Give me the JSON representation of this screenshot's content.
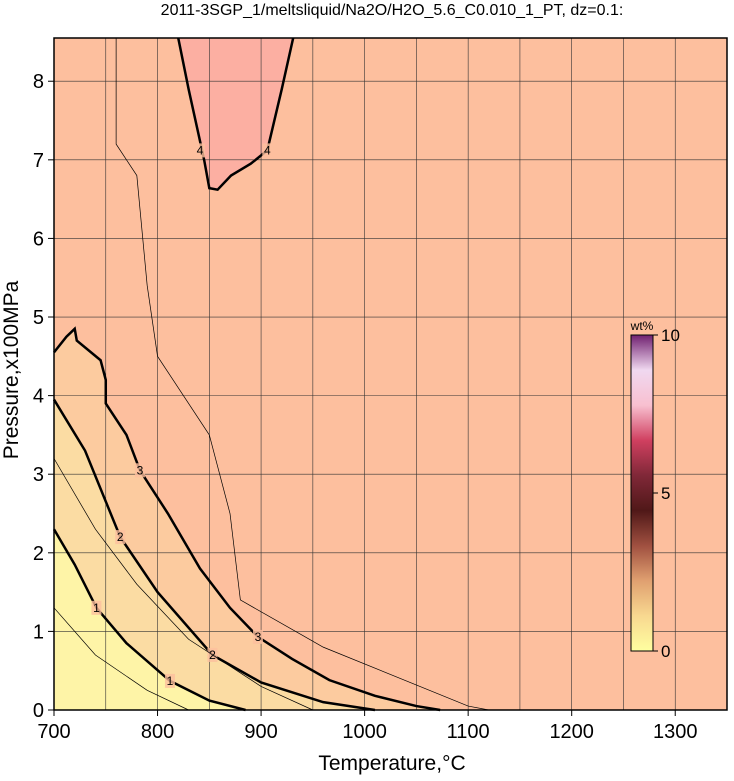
{
  "chart_data": {
    "type": "contour",
    "title": "2011-3SGP_1/meltsliquid/Na2O/H2O_5.6_C0.010_1_PT, dz=0.1:",
    "x_label": "Temperature,°C",
    "y_label": "Pressure,x100MPa",
    "xlim": [
      700,
      1350
    ],
    "ylim": [
      0,
      8.55
    ],
    "xticks": [
      700,
      800,
      900,
      1000,
      1100,
      1200,
      1300
    ],
    "yticks": [
      0,
      1,
      2,
      3,
      4,
      5,
      6,
      7,
      8
    ],
    "xgrid": [
      750,
      800,
      850,
      900,
      950,
      1000,
      1050,
      1100,
      1150,
      1200,
      1250,
      1300
    ],
    "ygrid": [
      1,
      2,
      3,
      4,
      5,
      6,
      7,
      8
    ],
    "background": "#fdbf9e",
    "contours": [
      {
        "level": 3,
        "fill": "#fccb9f",
        "width": 2.5,
        "x": [
          700,
          712,
          720,
          722,
          745,
          750,
          750,
          770,
          783,
          810,
          841,
          870,
          897,
          930,
          966,
          1010,
          1050,
          1073
        ],
        "y": [
          4.55,
          4.75,
          4.85,
          4.7,
          4.45,
          4.2,
          3.9,
          3.5,
          3.05,
          2.5,
          1.8,
          1.3,
          0.93,
          0.65,
          0.38,
          0.18,
          0.05,
          0
        ],
        "label_at": [
          [
            783,
            3.05
          ],
          [
            897,
            0.93
          ]
        ]
      },
      {
        "level": 2,
        "fill": "#fbdca3",
        "width": 2.5,
        "x": [
          700,
          730,
          764,
          800,
          853,
          900,
          960,
          1010
        ],
        "y": [
          3.95,
          3.3,
          2.2,
          1.5,
          0.7,
          0.35,
          0.1,
          0
        ],
        "label_at": [
          [
            764,
            2.2
          ],
          [
            853,
            0.7
          ]
        ]
      },
      {
        "level": 1,
        "fill": "#fef4a7",
        "width": 2.5,
        "x": [
          700,
          720,
          741,
          770,
          812,
          850,
          885
        ],
        "y": [
          2.3,
          1.85,
          1.3,
          0.85,
          0.37,
          0.12,
          0
        ],
        "label_at": [
          [
            741,
            1.3
          ],
          [
            812,
            0.37
          ]
        ]
      },
      {
        "level": 4,
        "fill": "#fcafa2",
        "width": 2.5,
        "x": [
          820,
          830,
          845,
          850,
          858,
          871,
          890,
          906,
          920,
          931
        ],
        "y": [
          8.55,
          7.9,
          7.0,
          6.64,
          6.62,
          6.8,
          6.95,
          7.12,
          7.9,
          8.55
        ],
        "label_at": [
          [
            841,
            7.12
          ],
          [
            906,
            7.12
          ]
        ]
      },
      {
        "level": 0.5,
        "width": 0.7,
        "x": [
          700,
          740,
          790,
          830
        ],
        "y": [
          1.3,
          0.7,
          0.25,
          0
        ]
      },
      {
        "level": 1.5,
        "width": 0.7,
        "x": [
          700,
          740,
          780,
          830,
          900,
          950
        ],
        "y": [
          3.2,
          2.3,
          1.6,
          0.9,
          0.3,
          0
        ]
      },
      {
        "level": 3.5,
        "width": 0.7,
        "x": [
          760,
          760,
          780,
          790,
          800,
          850,
          870,
          880,
          960,
          1100,
          1120
        ],
        "y": [
          8.55,
          7.2,
          6.8,
          5.4,
          4.5,
          3.5,
          2.5,
          1.4,
          0.8,
          0.05,
          0
        ]
      }
    ],
    "colorbar": {
      "label": "wt%",
      "lim": [
        0,
        10
      ],
      "ticks": [
        0,
        5,
        10
      ],
      "colors": [
        "#ffffa0",
        "#f8d890",
        "#e0a070",
        "#a05040",
        "#501818",
        "#802838",
        "#d04060",
        "#f8c0d0",
        "#f0d8f0",
        "#702070"
      ]
    }
  }
}
